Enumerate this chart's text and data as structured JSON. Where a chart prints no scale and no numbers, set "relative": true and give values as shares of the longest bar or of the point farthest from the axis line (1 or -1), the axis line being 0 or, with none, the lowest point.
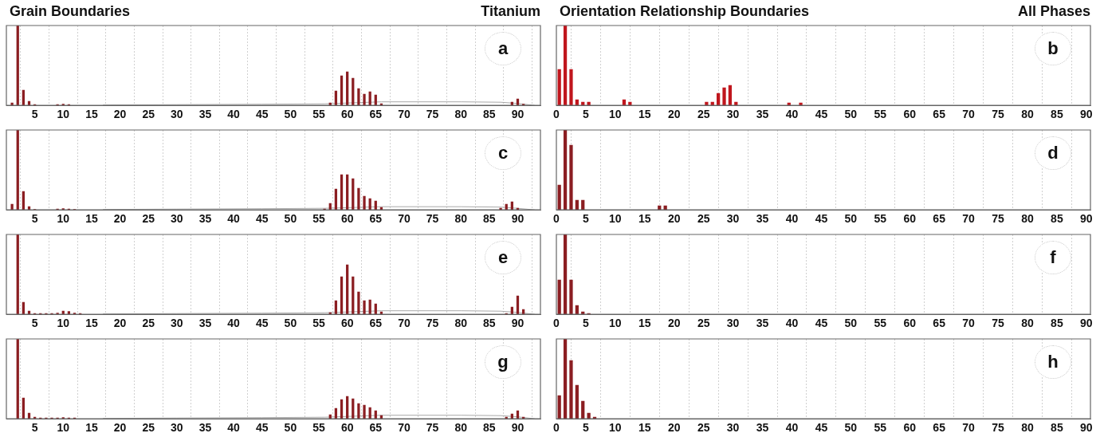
{
  "chart_data": [
    {
      "type": "bar",
      "title": "Grain Boundaries",
      "subtitle": "Titanium",
      "annotations": [
        "a"
      ],
      "relative": true,
      "xlim": [
        0,
        94
      ],
      "xticks": [
        5,
        10,
        15,
        20,
        25,
        30,
        35,
        40,
        45,
        50,
        55,
        60,
        65,
        70,
        75,
        80,
        85,
        90
      ],
      "grid": "x",
      "tick_labels": "x",
      "series": [
        {
          "type": "bar",
          "color": "#8b1e22",
          "x": [
            1,
            2,
            3,
            4,
            5,
            9,
            10,
            11,
            57,
            58,
            59,
            60,
            61,
            62,
            63,
            64,
            65,
            66,
            89,
            90,
            91
          ],
          "values": [
            0.03,
            1,
            0.19,
            0.05,
            0.01,
            0.01,
            0.015,
            0.01,
            0.03,
            0.18,
            0.37,
            0.42,
            0.34,
            0.21,
            0.14,
            0.17,
            0.13,
            0.02,
            0.04,
            0.08,
            0.015
          ]
        },
        {
          "type": "line",
          "color": "#a8a8a8",
          "x": [
            17,
            30,
            45,
            56,
            66,
            80,
            87,
            90,
            93
          ],
          "values": [
            0.005,
            0.01,
            0.015,
            0.02,
            0.045,
            0.045,
            0.04,
            0.025,
            0
          ]
        }
      ]
    },
    {
      "type": "bar",
      "title": "Orientation Relationship Boundaries",
      "subtitle": "All Phases",
      "annotations": [
        "b"
      ],
      "relative": true,
      "xlim": [
        0,
        90.7
      ],
      "xticks": [
        0,
        5,
        10,
        15,
        20,
        25,
        30,
        35,
        40,
        45,
        50,
        55,
        60,
        65,
        70,
        75,
        80,
        85,
        90
      ],
      "grid": "x",
      "tick_labels": "x",
      "series": [
        {
          "type": "bar",
          "color": "#c0161d",
          "x": [
            0.5,
            1.5,
            2.5,
            3.5,
            4.5,
            5.5,
            11.5,
            12.5,
            25.5,
            26.5,
            27.5,
            28.5,
            29.5,
            30.5,
            39.5,
            41.5
          ],
          "values": [
            0.45,
            1,
            0.45,
            0.07,
            0.04,
            0.04,
            0.07,
            0.04,
            0.04,
            0.04,
            0.15,
            0.22,
            0.25,
            0.04,
            0.03,
            0.03
          ]
        }
      ]
    },
    {
      "type": "bar",
      "annotations": [
        "c"
      ],
      "relative": true,
      "xlim": [
        0,
        94
      ],
      "xticks": [
        5,
        10,
        15,
        20,
        25,
        30,
        35,
        40,
        45,
        50,
        55,
        60,
        65,
        70,
        75,
        80,
        85,
        90
      ],
      "grid": "x",
      "tick_labels": "x",
      "series": [
        {
          "type": "bar",
          "color": "#8b1e22",
          "x": [
            1,
            2,
            3,
            4,
            5,
            9,
            10,
            11,
            12,
            56,
            57,
            58,
            59,
            60,
            61,
            62,
            63,
            64,
            65,
            66,
            87,
            88,
            89,
            90
          ],
          "values": [
            0.07,
            1,
            0.23,
            0.04,
            0.005,
            0.01,
            0.015,
            0.01,
            0.005,
            0.01,
            0.08,
            0.26,
            0.44,
            0.44,
            0.39,
            0.27,
            0.17,
            0.14,
            0.11,
            0.03,
            0.02,
            0.07,
            0.1,
            0.02
          ]
        },
        {
          "type": "line",
          "color": "#a8a8a8",
          "x": [
            17,
            30,
            45,
            56,
            66,
            80,
            87,
            90,
            93
          ],
          "values": [
            0.005,
            0.01,
            0.015,
            0.02,
            0.04,
            0.04,
            0.035,
            0.02,
            0
          ]
        }
      ]
    },
    {
      "type": "bar",
      "annotations": [
        "d"
      ],
      "relative": true,
      "xlim": [
        0,
        90.7
      ],
      "xticks": [
        0,
        5,
        10,
        15,
        20,
        25,
        30,
        35,
        40,
        45,
        50,
        55,
        60,
        65,
        70,
        75,
        80,
        85,
        90
      ],
      "grid": "x",
      "tick_labels": "x",
      "series": [
        {
          "type": "bar",
          "color": "#8b1e22",
          "x": [
            0.5,
            1.5,
            2.5,
            3.5,
            4.5,
            17.5,
            18.5
          ],
          "values": [
            0.31,
            1,
            0.81,
            0.12,
            0.12,
            0.05,
            0.05
          ]
        }
      ]
    },
    {
      "type": "bar",
      "annotations": [
        "e"
      ],
      "relative": true,
      "xlim": [
        0,
        94
      ],
      "xticks": [
        5,
        10,
        15,
        20,
        25,
        30,
        35,
        40,
        45,
        50,
        55,
        60,
        65,
        70,
        75,
        80,
        85,
        90
      ],
      "grid": "x",
      "tick_labels": "x",
      "series": [
        {
          "type": "bar",
          "color": "#8b1e22",
          "x": [
            2,
            3,
            4,
            5,
            6,
            7,
            8,
            9,
            10,
            11,
            12,
            13,
            57,
            58,
            59,
            60,
            61,
            62,
            63,
            64,
            65,
            66,
            88,
            89,
            90,
            91
          ],
          "values": [
            1,
            0.15,
            0.04,
            0.01,
            0.01,
            0.01,
            0.01,
            0.015,
            0.04,
            0.035,
            0.015,
            0.01,
            0.02,
            0.17,
            0.47,
            0.62,
            0.47,
            0.28,
            0.17,
            0.18,
            0.13,
            0.03,
            0.01,
            0.09,
            0.23,
            0.06
          ]
        },
        {
          "type": "line",
          "color": "#a8a8a8",
          "x": [
            17,
            30,
            45,
            56,
            66,
            80,
            87,
            90,
            93
          ],
          "values": [
            0.005,
            0.01,
            0.015,
            0.02,
            0.045,
            0.045,
            0.04,
            0.025,
            0
          ]
        }
      ]
    },
    {
      "type": "bar",
      "annotations": [
        "f"
      ],
      "relative": true,
      "xlim": [
        0,
        90.7
      ],
      "xticks": [
        0,
        5,
        10,
        15,
        20,
        25,
        30,
        35,
        40,
        45,
        50,
        55,
        60,
        65,
        70,
        75,
        80,
        85,
        90
      ],
      "grid": "x",
      "tick_labels": "x",
      "series": [
        {
          "type": "bar",
          "color": "#8b1e22",
          "x": [
            0.5,
            1.5,
            2.5,
            3.5,
            4.5,
            5.5
          ],
          "values": [
            0.43,
            1,
            0.43,
            0.11,
            0.03,
            0.01
          ]
        }
      ]
    },
    {
      "type": "bar",
      "annotations": [
        "g"
      ],
      "relative": true,
      "xlim": [
        0,
        94
      ],
      "xticks": [
        5,
        10,
        15,
        20,
        25,
        30,
        35,
        40,
        45,
        50,
        55,
        60,
        65,
        70,
        75,
        80,
        85,
        90
      ],
      "grid": "x",
      "tick_labels": "x",
      "series": [
        {
          "type": "bar",
          "color": "#8b1e22",
          "x": [
            2,
            3,
            4,
            5,
            6,
            7,
            8,
            9,
            10,
            11,
            12,
            57,
            58,
            59,
            60,
            61,
            62,
            63,
            64,
            65,
            66,
            88,
            89,
            90,
            91
          ],
          "values": [
            1,
            0.26,
            0.07,
            0.02,
            0.01,
            0.01,
            0.01,
            0.01,
            0.015,
            0.01,
            0.01,
            0.05,
            0.13,
            0.24,
            0.28,
            0.25,
            0.19,
            0.17,
            0.14,
            0.1,
            0.04,
            0.02,
            0.06,
            0.1,
            0.02
          ]
        },
        {
          "type": "line",
          "color": "#a8a8a8",
          "x": [
            17,
            30,
            45,
            56,
            66,
            80,
            87,
            90,
            93
          ],
          "values": [
            0.005,
            0.01,
            0.015,
            0.02,
            0.045,
            0.045,
            0.04,
            0.025,
            0
          ]
        }
      ]
    },
    {
      "type": "bar",
      "annotations": [
        "h"
      ],
      "relative": true,
      "xlim": [
        0,
        90.7
      ],
      "xticks": [
        0,
        5,
        10,
        15,
        20,
        25,
        30,
        35,
        40,
        45,
        50,
        55,
        60,
        65,
        70,
        75,
        80,
        85,
        90
      ],
      "grid": "x",
      "tick_labels": "x",
      "series": [
        {
          "type": "bar",
          "color": "#8b1e22",
          "x": [
            0.5,
            1.5,
            2.5,
            3.5,
            4.5,
            5.5,
            6.5
          ],
          "values": [
            0.29,
            1,
            0.73,
            0.42,
            0.22,
            0.07,
            0.02
          ]
        }
      ]
    }
  ]
}
